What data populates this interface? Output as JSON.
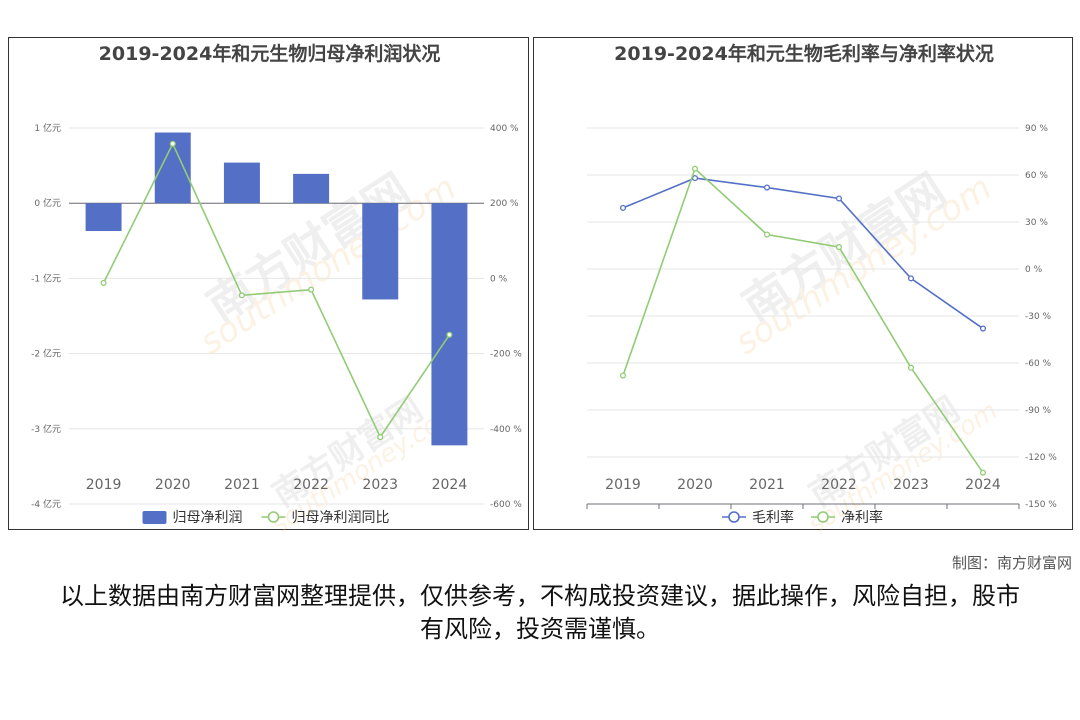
{
  "colors": {
    "bar": "#5470c6",
    "green": "#91cc75",
    "blue": "#5470c6",
    "grid": "#e6e6e6",
    "axis": "#666666",
    "watermark": "#f5c58a"
  },
  "watermark": {
    "brand": "南方财富网",
    "url": "southmoney.com"
  },
  "credit": "制图：南方财富网",
  "disclaimer": "以上数据由南方财富网整理提供，仅供参考，不构成投资建议，据此操作，风险自担，股市有风险，投资需谨慎。",
  "chart_data": [
    {
      "type": "bar",
      "title": "2019-2024年和元生物归母净利润状况",
      "categories": [
        "2019",
        "2020",
        "2021",
        "2022",
        "2023",
        "2024"
      ],
      "y_left": {
        "min": -4,
        "max": 1,
        "step": 1,
        "ticks": [
          "1 亿元",
          "0 亿元",
          "-1 亿元",
          "-2 亿元",
          "-3 亿元",
          "-4 亿元"
        ]
      },
      "y_right": {
        "min": -600,
        "max": 400,
        "step": 200,
        "ticks": [
          "400 %",
          "200 %",
          "0 %",
          "-200 %",
          "-400 %",
          "-600 %"
        ]
      },
      "grid": true,
      "legend_position": "bottom",
      "series": [
        {
          "name": "归母净利润",
          "kind": "bar",
          "axis": "left",
          "color": "#5470c6",
          "values": [
            -0.37,
            0.94,
            0.54,
            0.39,
            -1.28,
            -3.22
          ]
        },
        {
          "name": "归母净利润同比",
          "kind": "line",
          "axis": "right",
          "color": "#91cc75",
          "values": [
            -12,
            358,
            -45,
            -30,
            -422,
            -150
          ]
        }
      ]
    },
    {
      "type": "line",
      "title": "2019-2024年和元生物毛利率与净利率状况",
      "categories": [
        "2019",
        "2020",
        "2021",
        "2022",
        "2023",
        "2024"
      ],
      "y_right": {
        "min": -150,
        "max": 90,
        "step": 30,
        "ticks": [
          "90 %",
          "60 %",
          "30 %",
          "0 %",
          "-30 %",
          "-60 %",
          "-90 %",
          "-120 %",
          "-150 %"
        ]
      },
      "grid": true,
      "legend_position": "bottom",
      "series": [
        {
          "name": "毛利率",
          "kind": "line",
          "axis": "right",
          "color": "#5470c6",
          "values": [
            39,
            58,
            52,
            45,
            -6,
            -38
          ]
        },
        {
          "name": "净利率",
          "kind": "line",
          "axis": "right",
          "color": "#91cc75",
          "values": [
            -68,
            64,
            22,
            14,
            -63,
            -130
          ]
        }
      ]
    }
  ]
}
